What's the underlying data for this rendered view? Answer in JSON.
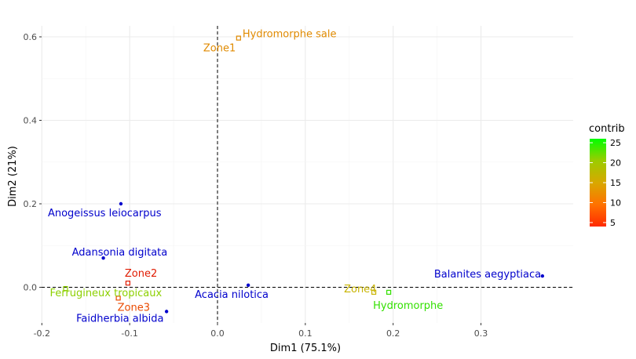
{
  "chart_data": {
    "type": "scatter",
    "xlabel": "Dim1 (75.1%)",
    "ylabel": "Dim2 (21%)",
    "xlim": [
      -0.2,
      0.38
    ],
    "ylim": [
      -0.085,
      0.63
    ],
    "x_ticks": [
      -0.2,
      -0.1,
      0.0,
      0.1,
      0.2,
      0.3
    ],
    "x_tick_labels": [
      "-0.2",
      "-0.1",
      "0.0",
      "0.1",
      "0.2",
      "0.3"
    ],
    "y_ticks": [
      0.0,
      0.2,
      0.4,
      0.6
    ],
    "y_tick_labels": [
      "0.0",
      "0.2",
      "0.4",
      "0.6"
    ],
    "grid": true,
    "reference_lines": {
      "x": 0,
      "y": 0,
      "style": "dashed"
    },
    "species": [
      {
        "label": "Anogeissus leiocarpus",
        "x": -0.11,
        "y": 0.2,
        "color": "#0000cc"
      },
      {
        "label": "Adansonia digitata",
        "x": -0.13,
        "y": 0.07,
        "color": "#0000cc"
      },
      {
        "label": "Acacia nilotica",
        "x": 0.035,
        "y": 0.005,
        "color": "#0000cc"
      },
      {
        "label": "Faidherbia albida",
        "x": -0.058,
        "y": -0.058,
        "color": "#0000cc"
      },
      {
        "label": "Balanites aegyptiaca",
        "x": 0.37,
        "y": 0.027,
        "color": "#0000cc"
      }
    ],
    "sites": [
      {
        "label": "Hydromorphe sale",
        "x": 0.024,
        "y": 0.597,
        "contrib": 14,
        "color": "#e08a00"
      },
      {
        "label": "Zone1",
        "x": 0.024,
        "y": 0.597,
        "contrib": 14,
        "color": "#e08a00"
      },
      {
        "label": "Zone2",
        "x": -0.102,
        "y": 0.01,
        "contrib": 5,
        "color": "#e01a00"
      },
      {
        "label": "Zone3",
        "x": -0.113,
        "y": -0.026,
        "contrib": 8,
        "color": "#ea4a00"
      },
      {
        "label": "Ferrugineux tropicaux",
        "x": -0.173,
        "y": -0.003,
        "contrib": 20,
        "color": "#8cd000"
      },
      {
        "label": "Zone4",
        "x": 0.178,
        "y": -0.012,
        "contrib": 17,
        "color": "#c8b400"
      },
      {
        "label": "Hydromorphe",
        "x": 0.195,
        "y": -0.012,
        "contrib": 25,
        "color": "#33e000"
      }
    ],
    "legend": {
      "title": "contrib",
      "ticks": [
        "5",
        "10",
        "15",
        "20",
        "25"
      ],
      "tick_values": [
        5,
        10,
        15,
        20,
        25
      ],
      "range": [
        4,
        26
      ],
      "colors": [
        "#ff2a00",
        "#ff7200",
        "#d8a800",
        "#9ccc00",
        "#00ff00"
      ],
      "placement": "right"
    }
  }
}
